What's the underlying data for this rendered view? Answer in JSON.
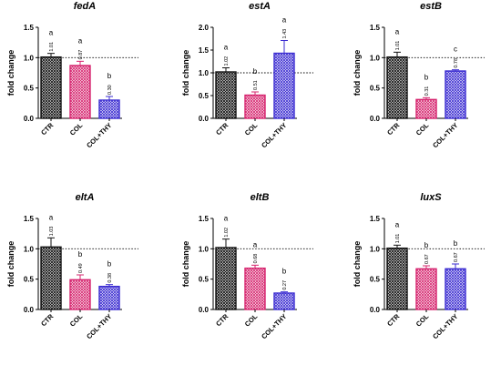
{
  "figure": {
    "categories": [
      "CTR",
      "COL",
      "COL+THY"
    ],
    "series_colors": {
      "CTR": "#111111",
      "COL": "#d6246e",
      "COL+THY": "#3a2bd1"
    },
    "reference_line_value": 1.0
  },
  "chart_data": [
    {
      "type": "bar",
      "title": "fedA",
      "ylabel": "fold change",
      "categories": [
        "CTR",
        "COL",
        "COL+THY"
      ],
      "values": [
        1.01,
        0.87,
        0.3
      ],
      "errors": [
        0.06,
        0.07,
        0.06
      ],
      "value_labels": [
        "1.01",
        "0.87",
        "0.30"
      ],
      "significance": [
        "a",
        "a",
        "b"
      ],
      "ylim": [
        0,
        1.5
      ],
      "yticks": [
        0.0,
        0.5,
        1.0,
        1.5
      ],
      "ytick_labels": [
        "0.0",
        "0.5",
        "1.0",
        "1.5"
      ]
    },
    {
      "type": "bar",
      "title": "estA",
      "ylabel": "fold change",
      "categories": [
        "CTR",
        "COL",
        "COL+THY"
      ],
      "values": [
        1.02,
        0.51,
        1.43
      ],
      "errors": [
        0.09,
        0.07,
        0.28
      ],
      "value_labels": [
        "1.02",
        "0.51",
        "1.43"
      ],
      "significance": [
        "a",
        "b",
        "a"
      ],
      "ylim": [
        0,
        2.0
      ],
      "yticks": [
        0.0,
        0.5,
        1.0,
        1.5,
        2.0
      ],
      "ytick_labels": [
        "0.0",
        "0.5",
        "1.0",
        "1.5",
        "2.0"
      ]
    },
    {
      "type": "bar",
      "title": "estB",
      "ylabel": "fold change",
      "categories": [
        "CTR",
        "COL",
        "COL+THY"
      ],
      "values": [
        1.01,
        0.31,
        0.78
      ],
      "errors": [
        0.08,
        0.03,
        0.02
      ],
      "value_labels": [
        "1.01",
        "0.31",
        "0.78"
      ],
      "significance": [
        "a",
        "b",
        "c"
      ],
      "ylim": [
        0,
        1.5
      ],
      "yticks": [
        0.0,
        0.5,
        1.0,
        1.5
      ],
      "ytick_labels": [
        "0.0",
        "0.5",
        "1.0",
        "1.5"
      ]
    },
    {
      "type": "bar",
      "title": "eltA",
      "ylabel": "fold change",
      "categories": [
        "CTR",
        "COL",
        "COL+THY"
      ],
      "values": [
        1.03,
        0.49,
        0.38
      ],
      "errors": [
        0.15,
        0.08,
        0.03
      ],
      "value_labels": [
        "1.03",
        "0.49",
        "0.38"
      ],
      "significance": [
        "a",
        "b",
        "b"
      ],
      "ylim": [
        0,
        1.5
      ],
      "yticks": [
        0.0,
        0.5,
        1.0,
        1.5
      ],
      "ytick_labels": [
        "0.0",
        "0.5",
        "1.0",
        "1.5"
      ]
    },
    {
      "type": "bar",
      "title": "eltB",
      "ylabel": "fold change",
      "categories": [
        "CTR",
        "COL",
        "COL+THY"
      ],
      "values": [
        1.02,
        0.68,
        0.27
      ],
      "errors": [
        0.14,
        0.05,
        0.02
      ],
      "value_labels": [
        "1.02",
        "0.68",
        "0.27"
      ],
      "significance": [
        "a",
        "a",
        "b"
      ],
      "ylim": [
        0,
        1.5
      ],
      "yticks": [
        0.0,
        0.5,
        1.0,
        1.5
      ],
      "ytick_labels": [
        "0.0",
        "0.5",
        "1.0",
        "1.5"
      ]
    },
    {
      "type": "bar",
      "title": "luxS",
      "ylabel": "fold change",
      "categories": [
        "CTR",
        "COL",
        "COL+THY"
      ],
      "values": [
        1.01,
        0.67,
        0.67
      ],
      "errors": [
        0.05,
        0.05,
        0.08
      ],
      "value_labels": [
        "1.01",
        "0.67",
        "0.67"
      ],
      "significance": [
        "a",
        "b",
        "b"
      ],
      "ylim": [
        0,
        1.5
      ],
      "yticks": [
        0.0,
        0.5,
        1.0,
        1.5
      ],
      "ytick_labels": [
        "0.0",
        "0.5",
        "1.0",
        "1.5"
      ]
    }
  ]
}
